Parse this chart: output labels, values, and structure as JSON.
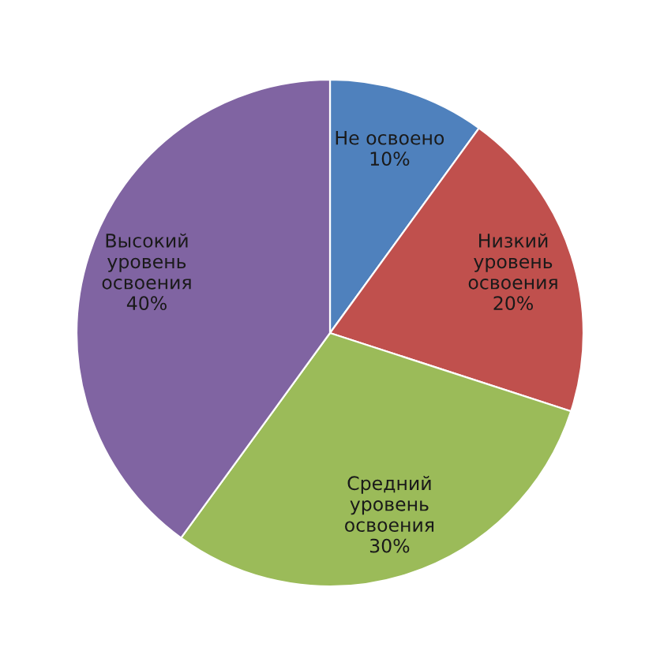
{
  "chart_data": {
    "type": "pie",
    "categories": [
      "Не освоено",
      "Низкий\nуровень\nосвоения",
      "Средний\nуровень\nосвоения",
      "Высокий\nуровень\nосвоения"
    ],
    "values": [
      10,
      20,
      30,
      40
    ],
    "value_labels": [
      "10%",
      "20%",
      "30%",
      "40%"
    ],
    "colors": [
      "#4f81bd",
      "#c0504d",
      "#9bbb59",
      "#8064a2"
    ],
    "legend": false
  }
}
